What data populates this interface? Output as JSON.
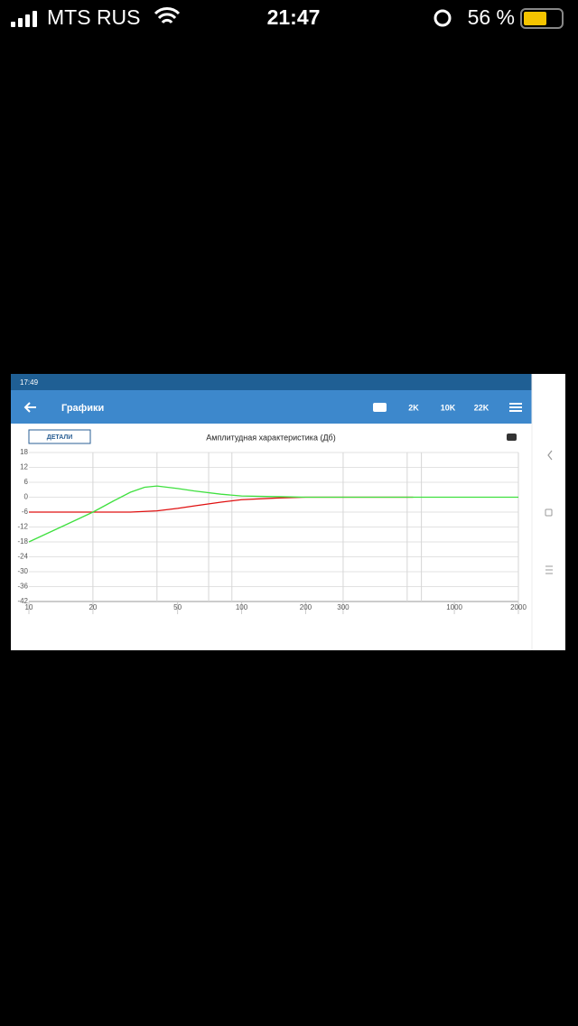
{
  "status_bar": {
    "carrier": "MTS RUS",
    "time": "21:47",
    "battery": "56 %"
  },
  "app": {
    "status_time": "17:49",
    "title": "Графики",
    "actions": [
      "2K",
      "10K",
      "22K"
    ],
    "details_button": "ДЕТАЛИ"
  },
  "chart_data": {
    "type": "line",
    "title": "Амплитудная характеристика (Дб)",
    "x_scale": "log",
    "xlim": [
      10,
      2000
    ],
    "ylim": [
      -42,
      18
    ],
    "xticks": [
      10,
      20,
      50,
      100,
      200,
      300,
      1000,
      2000
    ],
    "x_grid_lines": [
      20,
      40,
      70,
      90,
      300,
      600,
      700,
      2000
    ],
    "yticks": [
      18,
      12,
      6,
      0,
      -6,
      -12,
      -18,
      -24,
      -30,
      -36,
      -42
    ],
    "grid": true,
    "series": [
      {
        "color": "#e01010",
        "x": [
          10,
          20,
          30,
          40,
          50,
          60,
          80,
          100,
          150,
          200,
          300,
          640
        ],
        "values": [
          -6,
          -6,
          -6,
          -5.5,
          -4.5,
          -3.5,
          -2,
          -1,
          -0.3,
          0,
          0,
          0
        ]
      },
      {
        "color": "#3fe03f",
        "x": [
          10,
          15,
          20,
          25,
          30,
          35,
          40,
          50,
          60,
          80,
          100,
          150,
          200,
          500,
          1000,
          2000
        ],
        "values": [
          -18,
          -11,
          -6,
          -1.5,
          2,
          4,
          4.5,
          3.5,
          2.5,
          1.2,
          0.5,
          0.2,
          0,
          0,
          0,
          0
        ]
      }
    ]
  }
}
